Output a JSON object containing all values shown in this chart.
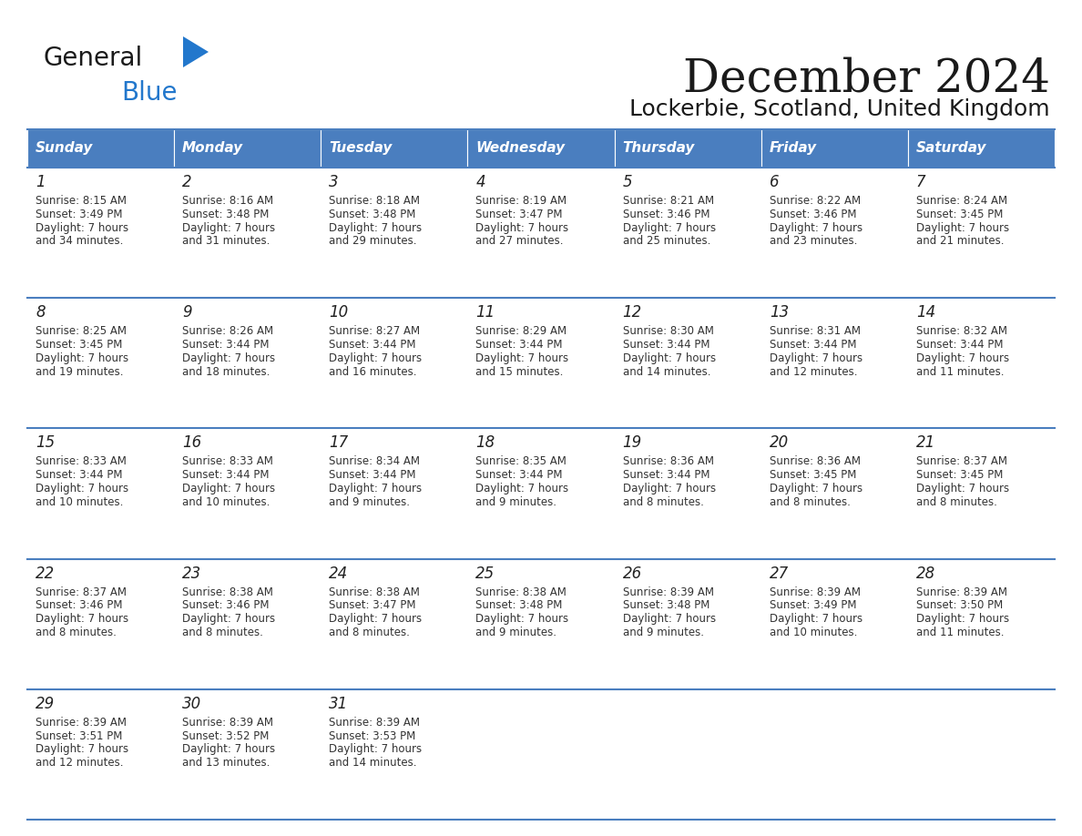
{
  "title": "December 2024",
  "subtitle": "Lockerbie, Scotland, United Kingdom",
  "header_color": "#4a7ebf",
  "header_text_color": "#FFFFFF",
  "cell_bg_color": "#FFFFFF",
  "row_sep_color": "#4a7ebf",
  "days_of_week": [
    "Sunday",
    "Monday",
    "Tuesday",
    "Wednesday",
    "Thursday",
    "Friday",
    "Saturday"
  ],
  "calendar_data": [
    [
      {
        "day": 1,
        "sunrise": "8:15 AM",
        "sunset": "3:49 PM",
        "daylight_l1": "Daylight: 7 hours",
        "daylight_l2": "and 34 minutes."
      },
      {
        "day": 2,
        "sunrise": "8:16 AM",
        "sunset": "3:48 PM",
        "daylight_l1": "Daylight: 7 hours",
        "daylight_l2": "and 31 minutes."
      },
      {
        "day": 3,
        "sunrise": "8:18 AM",
        "sunset": "3:48 PM",
        "daylight_l1": "Daylight: 7 hours",
        "daylight_l2": "and 29 minutes."
      },
      {
        "day": 4,
        "sunrise": "8:19 AM",
        "sunset": "3:47 PM",
        "daylight_l1": "Daylight: 7 hours",
        "daylight_l2": "and 27 minutes."
      },
      {
        "day": 5,
        "sunrise": "8:21 AM",
        "sunset": "3:46 PM",
        "daylight_l1": "Daylight: 7 hours",
        "daylight_l2": "and 25 minutes."
      },
      {
        "day": 6,
        "sunrise": "8:22 AM",
        "sunset": "3:46 PM",
        "daylight_l1": "Daylight: 7 hours",
        "daylight_l2": "and 23 minutes."
      },
      {
        "day": 7,
        "sunrise": "8:24 AM",
        "sunset": "3:45 PM",
        "daylight_l1": "Daylight: 7 hours",
        "daylight_l2": "and 21 minutes."
      }
    ],
    [
      {
        "day": 8,
        "sunrise": "8:25 AM",
        "sunset": "3:45 PM",
        "daylight_l1": "Daylight: 7 hours",
        "daylight_l2": "and 19 minutes."
      },
      {
        "day": 9,
        "sunrise": "8:26 AM",
        "sunset": "3:44 PM",
        "daylight_l1": "Daylight: 7 hours",
        "daylight_l2": "and 18 minutes."
      },
      {
        "day": 10,
        "sunrise": "8:27 AM",
        "sunset": "3:44 PM",
        "daylight_l1": "Daylight: 7 hours",
        "daylight_l2": "and 16 minutes."
      },
      {
        "day": 11,
        "sunrise": "8:29 AM",
        "sunset": "3:44 PM",
        "daylight_l1": "Daylight: 7 hours",
        "daylight_l2": "and 15 minutes."
      },
      {
        "day": 12,
        "sunrise": "8:30 AM",
        "sunset": "3:44 PM",
        "daylight_l1": "Daylight: 7 hours",
        "daylight_l2": "and 14 minutes."
      },
      {
        "day": 13,
        "sunrise": "8:31 AM",
        "sunset": "3:44 PM",
        "daylight_l1": "Daylight: 7 hours",
        "daylight_l2": "and 12 minutes."
      },
      {
        "day": 14,
        "sunrise": "8:32 AM",
        "sunset": "3:44 PM",
        "daylight_l1": "Daylight: 7 hours",
        "daylight_l2": "and 11 minutes."
      }
    ],
    [
      {
        "day": 15,
        "sunrise": "8:33 AM",
        "sunset": "3:44 PM",
        "daylight_l1": "Daylight: 7 hours",
        "daylight_l2": "and 10 minutes."
      },
      {
        "day": 16,
        "sunrise": "8:33 AM",
        "sunset": "3:44 PM",
        "daylight_l1": "Daylight: 7 hours",
        "daylight_l2": "and 10 minutes."
      },
      {
        "day": 17,
        "sunrise": "8:34 AM",
        "sunset": "3:44 PM",
        "daylight_l1": "Daylight: 7 hours",
        "daylight_l2": "and 9 minutes."
      },
      {
        "day": 18,
        "sunrise": "8:35 AM",
        "sunset": "3:44 PM",
        "daylight_l1": "Daylight: 7 hours",
        "daylight_l2": "and 9 minutes."
      },
      {
        "day": 19,
        "sunrise": "8:36 AM",
        "sunset": "3:44 PM",
        "daylight_l1": "Daylight: 7 hours",
        "daylight_l2": "and 8 minutes."
      },
      {
        "day": 20,
        "sunrise": "8:36 AM",
        "sunset": "3:45 PM",
        "daylight_l1": "Daylight: 7 hours",
        "daylight_l2": "and 8 minutes."
      },
      {
        "day": 21,
        "sunrise": "8:37 AM",
        "sunset": "3:45 PM",
        "daylight_l1": "Daylight: 7 hours",
        "daylight_l2": "and 8 minutes."
      }
    ],
    [
      {
        "day": 22,
        "sunrise": "8:37 AM",
        "sunset": "3:46 PM",
        "daylight_l1": "Daylight: 7 hours",
        "daylight_l2": "and 8 minutes."
      },
      {
        "day": 23,
        "sunrise": "8:38 AM",
        "sunset": "3:46 PM",
        "daylight_l1": "Daylight: 7 hours",
        "daylight_l2": "and 8 minutes."
      },
      {
        "day": 24,
        "sunrise": "8:38 AM",
        "sunset": "3:47 PM",
        "daylight_l1": "Daylight: 7 hours",
        "daylight_l2": "and 8 minutes."
      },
      {
        "day": 25,
        "sunrise": "8:38 AM",
        "sunset": "3:48 PM",
        "daylight_l1": "Daylight: 7 hours",
        "daylight_l2": "and 9 minutes."
      },
      {
        "day": 26,
        "sunrise": "8:39 AM",
        "sunset": "3:48 PM",
        "daylight_l1": "Daylight: 7 hours",
        "daylight_l2": "and 9 minutes."
      },
      {
        "day": 27,
        "sunrise": "8:39 AM",
        "sunset": "3:49 PM",
        "daylight_l1": "Daylight: 7 hours",
        "daylight_l2": "and 10 minutes."
      },
      {
        "day": 28,
        "sunrise": "8:39 AM",
        "sunset": "3:50 PM",
        "daylight_l1": "Daylight: 7 hours",
        "daylight_l2": "and 11 minutes."
      }
    ],
    [
      {
        "day": 29,
        "sunrise": "8:39 AM",
        "sunset": "3:51 PM",
        "daylight_l1": "Daylight: 7 hours",
        "daylight_l2": "and 12 minutes."
      },
      {
        "day": 30,
        "sunrise": "8:39 AM",
        "sunset": "3:52 PM",
        "daylight_l1": "Daylight: 7 hours",
        "daylight_l2": "and 13 minutes."
      },
      {
        "day": 31,
        "sunrise": "8:39 AM",
        "sunset": "3:53 PM",
        "daylight_l1": "Daylight: 7 hours",
        "daylight_l2": "and 14 minutes."
      },
      null,
      null,
      null,
      null
    ]
  ],
  "title_fontsize": 36,
  "subtitle_fontsize": 18,
  "header_fontsize": 11,
  "day_num_fontsize": 12,
  "cell_text_fontsize": 8.5
}
